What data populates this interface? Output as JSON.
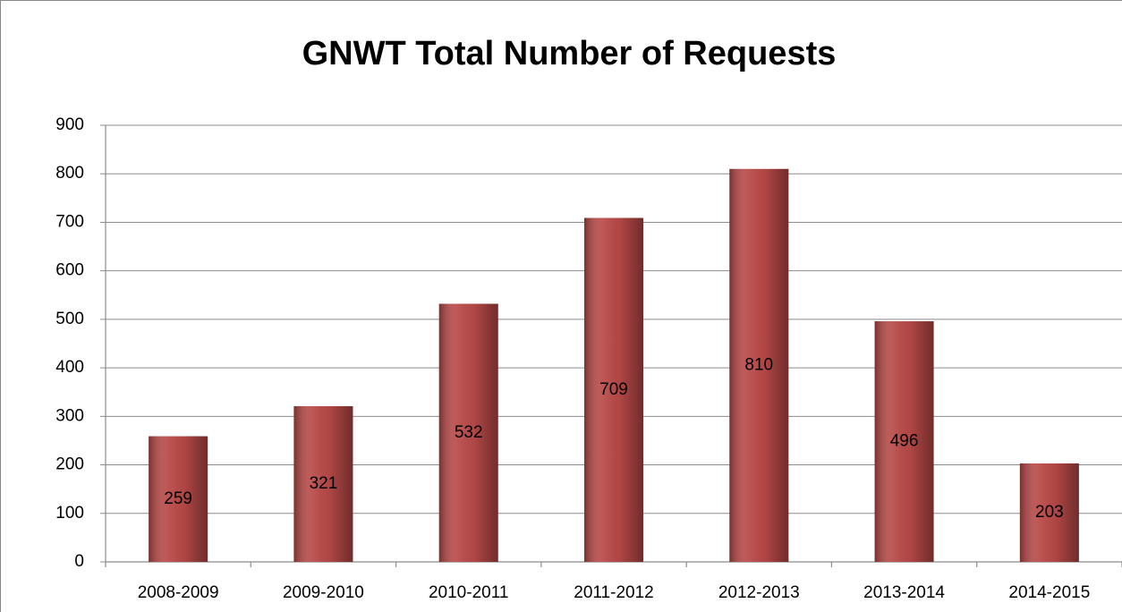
{
  "chart_data": {
    "type": "bar",
    "title": "GNWT Total Number of Requests",
    "categories": [
      "2008-2009",
      "2009-2010",
      "2010-2011",
      "2011-2012",
      "2012-2013",
      "2013-2014",
      "2014-2015"
    ],
    "values": [
      259,
      321,
      532,
      709,
      810,
      496,
      203
    ],
    "color": "#b94a48",
    "ylim": [
      0,
      900
    ],
    "yticks": [
      0,
      100,
      200,
      300,
      400,
      500,
      600,
      700,
      800,
      900
    ],
    "grid": true
  }
}
